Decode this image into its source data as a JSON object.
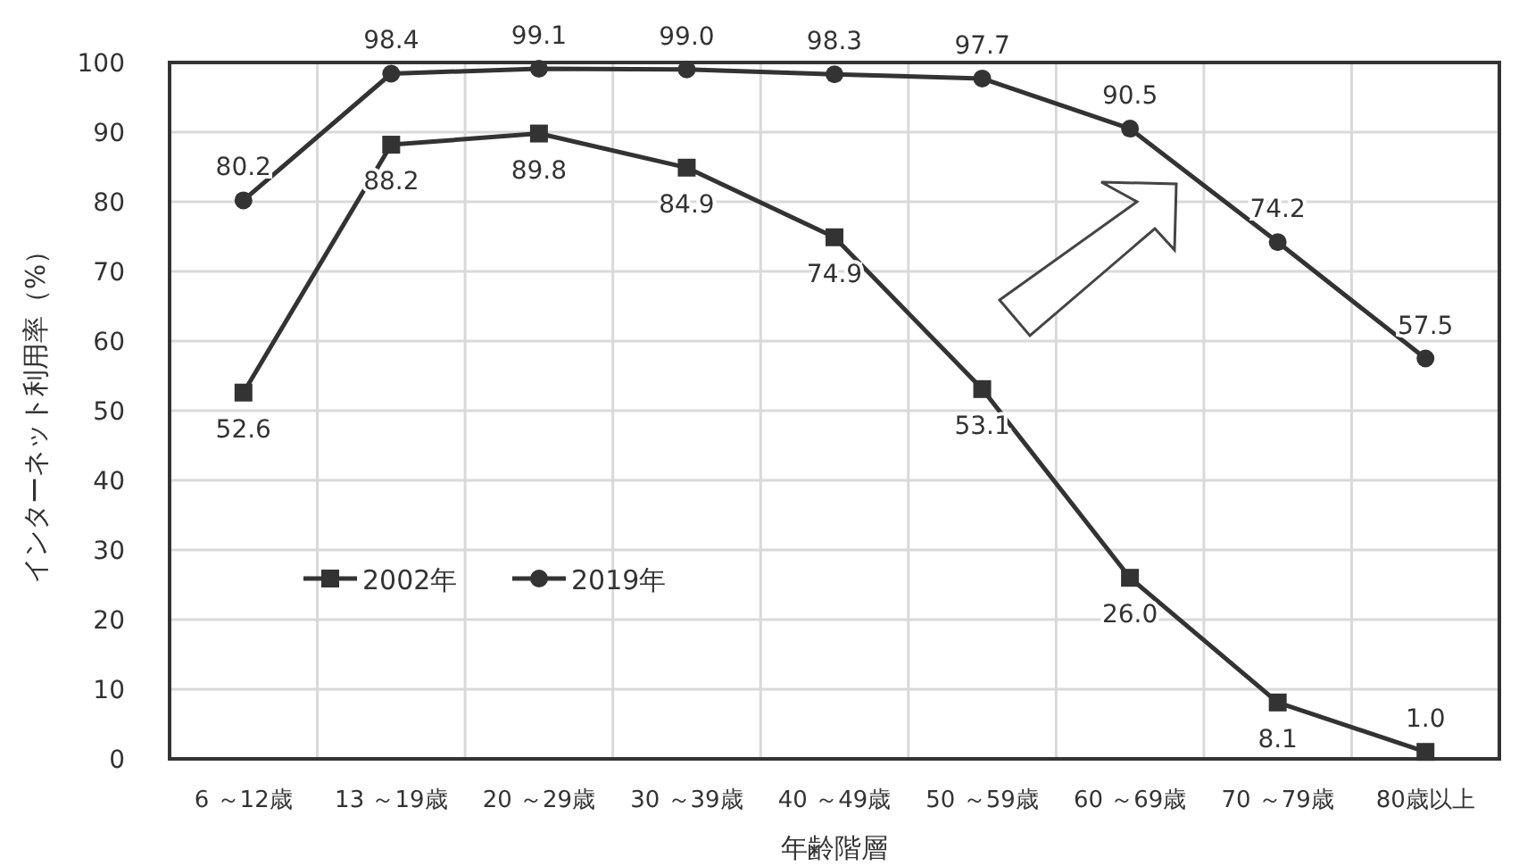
{
  "chart_data": {
    "type": "line",
    "xlabel": "年齢階層",
    "ylabel": "インターネット利用率（%）",
    "categories": [
      "6 ～12歳",
      "13 ～19歳",
      "20 ～29歳",
      "30 ～39歳",
      "40 ～49歳",
      "50 ～59歳",
      "60 ～69歳",
      "70 ～79歳",
      "80歳以上"
    ],
    "series": [
      {
        "name": "2002年",
        "color": "#333333",
        "marker": "square",
        "values": [
          52.6,
          88.2,
          89.8,
          84.9,
          74.9,
          53.1,
          26.0,
          8.1,
          1.0
        ],
        "value_labels": [
          "52.6",
          "88.2",
          "89.8",
          "84.9",
          "74.9",
          "53.1",
          "26.0",
          "8.1",
          "1.0"
        ]
      },
      {
        "name": "2019年",
        "color": "#333333",
        "marker": "circle",
        "values": [
          80.2,
          98.4,
          99.1,
          99.0,
          98.3,
          97.7,
          90.5,
          74.2,
          57.5
        ],
        "value_labels": [
          "80.2",
          "98.4",
          "99.1",
          "99.0",
          "98.3",
          "97.7",
          "90.5",
          "74.2",
          "57.5"
        ]
      }
    ],
    "ylim": [
      0,
      100
    ],
    "yticks": [
      0,
      10,
      20,
      30,
      40,
      50,
      60,
      70,
      80,
      90,
      100
    ],
    "grid": true,
    "legend": "bottom left",
    "line_style": "solid"
  }
}
